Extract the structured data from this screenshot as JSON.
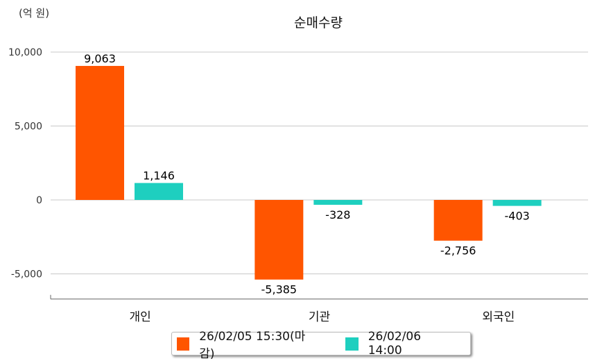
{
  "chart_data": {
    "type": "bar",
    "title": "순매수량",
    "unit_label": "(억 원)",
    "categories": [
      "개인",
      "기관",
      "외국인"
    ],
    "series": [
      {
        "name": "26/02/05 15:30(마감)",
        "color": "#FF5500",
        "values": [
          9063,
          -5385,
          -2756
        ],
        "labels": [
          "9,063",
          "-5,385",
          "-2,756"
        ]
      },
      {
        "name": "26/02/06 14:00",
        "color": "#1ECFBF",
        "values": [
          1146,
          -328,
          -403
        ],
        "labels": [
          "1,146",
          "-328",
          "-403"
        ]
      }
    ],
    "yticks": [
      10000,
      5000,
      0,
      -5000
    ],
    "ytick_labels": [
      "10,000",
      "5,000",
      "0",
      "-5,000"
    ],
    "ylim": [
      -6700,
      10000
    ],
    "grid": true,
    "legend": "bottom-center"
  }
}
